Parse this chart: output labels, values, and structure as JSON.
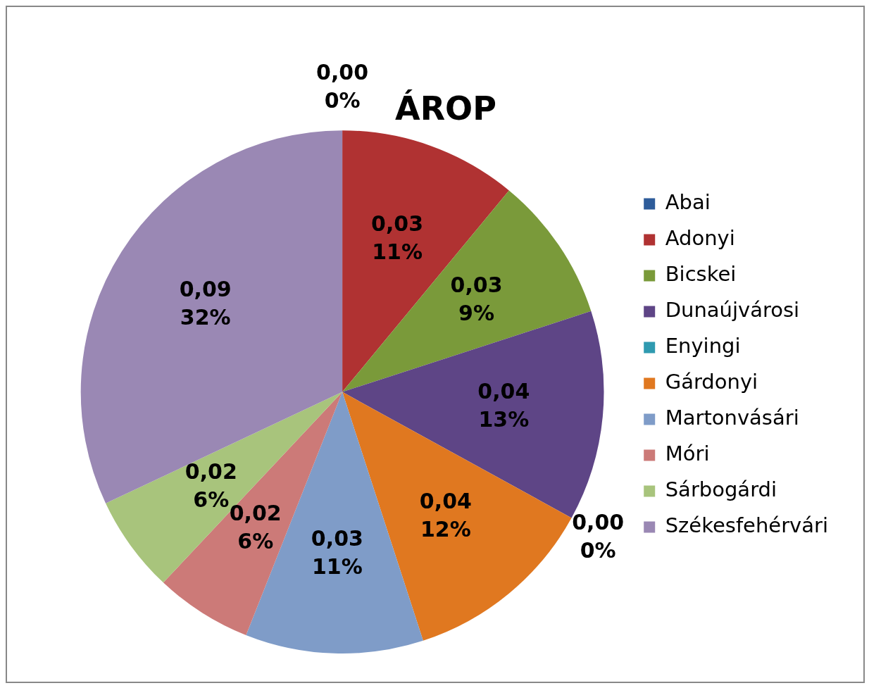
{
  "chart_data": {
    "type": "pie",
    "title": "ÁROP",
    "categories": [
      "Abai",
      "Adonyi",
      "Bicskei",
      "Dunaújvárosi",
      "Enyingi",
      "Gárdonyi",
      "Martonvásári",
      "Móri",
      "Sárbogárdi",
      "Székesfehérvári"
    ],
    "values": [
      0,
      11,
      9,
      13,
      0,
      12,
      11,
      6,
      6,
      32
    ],
    "colors": [
      "#2e5c9a",
      "#b03232",
      "#7a9a3a",
      "#5e4586",
      "#2f9ab0",
      "#e07820",
      "#7f9cc8",
      "#cc7a78",
      "#a8c47c",
      "#9a88b4"
    ],
    "value_labels": [
      "0,00\n0%",
      "0,03\n11%",
      "0,03\n9%",
      "0,04\n13%",
      "0,00\n0%",
      "0,04\n12%",
      "0,03\n11%",
      "0,02\n6%",
      "0,02\n6%",
      "0,09\n32%"
    ],
    "legend": "right"
  }
}
